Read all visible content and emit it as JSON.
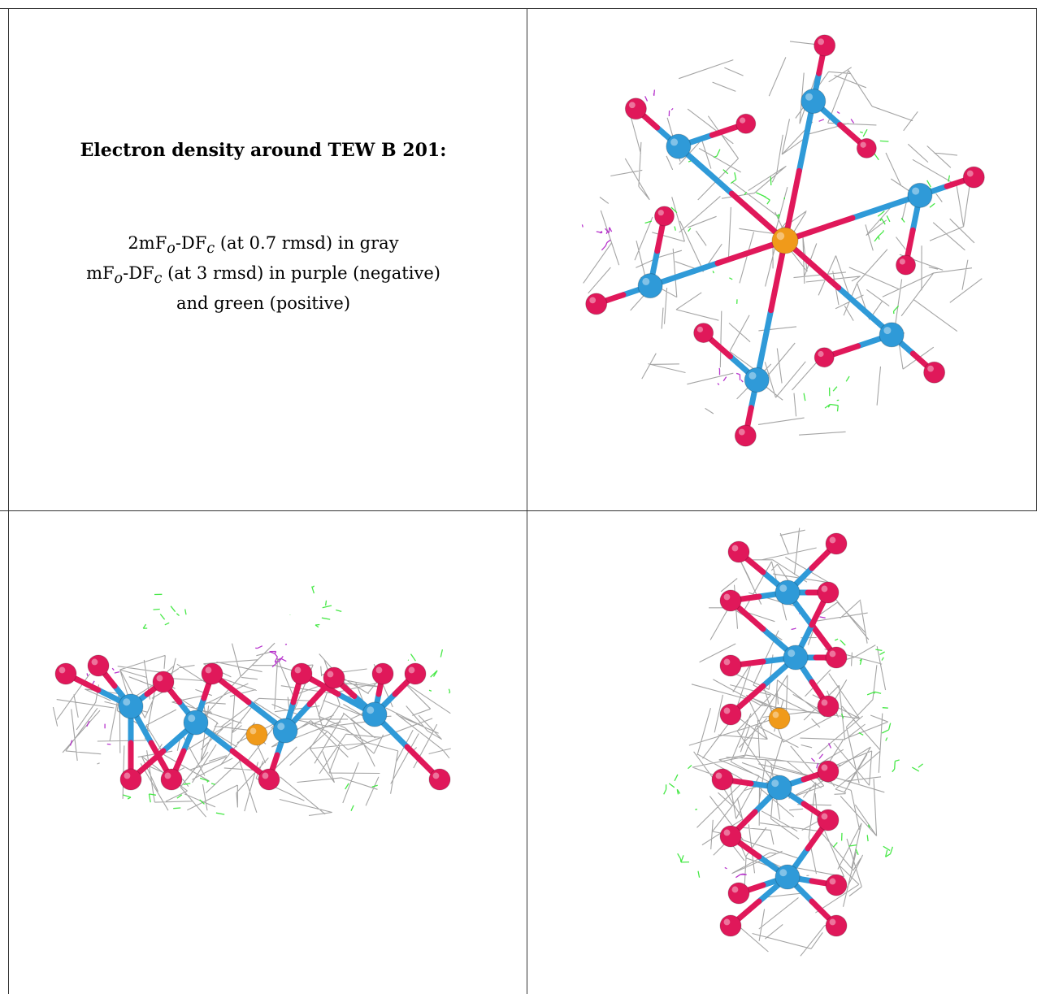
{
  "caption": {
    "title": "Electron density around TEW B 201:",
    "line1": {
      "a": "2mF",
      "sub1": "o",
      "b": "-DF",
      "sub2": "c",
      "c": " (at 0.7 rmsd) in gray"
    },
    "line2": {
      "a": "mF",
      "sub1": "o",
      "b": "-DF",
      "sub2": "c",
      "c": " (at 3 rmsd) in purple (negative)"
    },
    "line3": "and green (positive)"
  },
  "colors": {
    "mesh_gray": "#9a9a9a",
    "mesh_green": "#33e633",
    "mesh_purple": "#b020c8",
    "oxygen": "#e0185a",
    "tungsten": "#2f9ad8",
    "tellurium": "#f09a1a",
    "border": "#333333"
  },
  "panels": [
    {
      "view": "top-view",
      "shape": "round"
    },
    {
      "view": "side-view",
      "shape": "wide"
    },
    {
      "view": "end-view",
      "shape": "tall"
    }
  ]
}
